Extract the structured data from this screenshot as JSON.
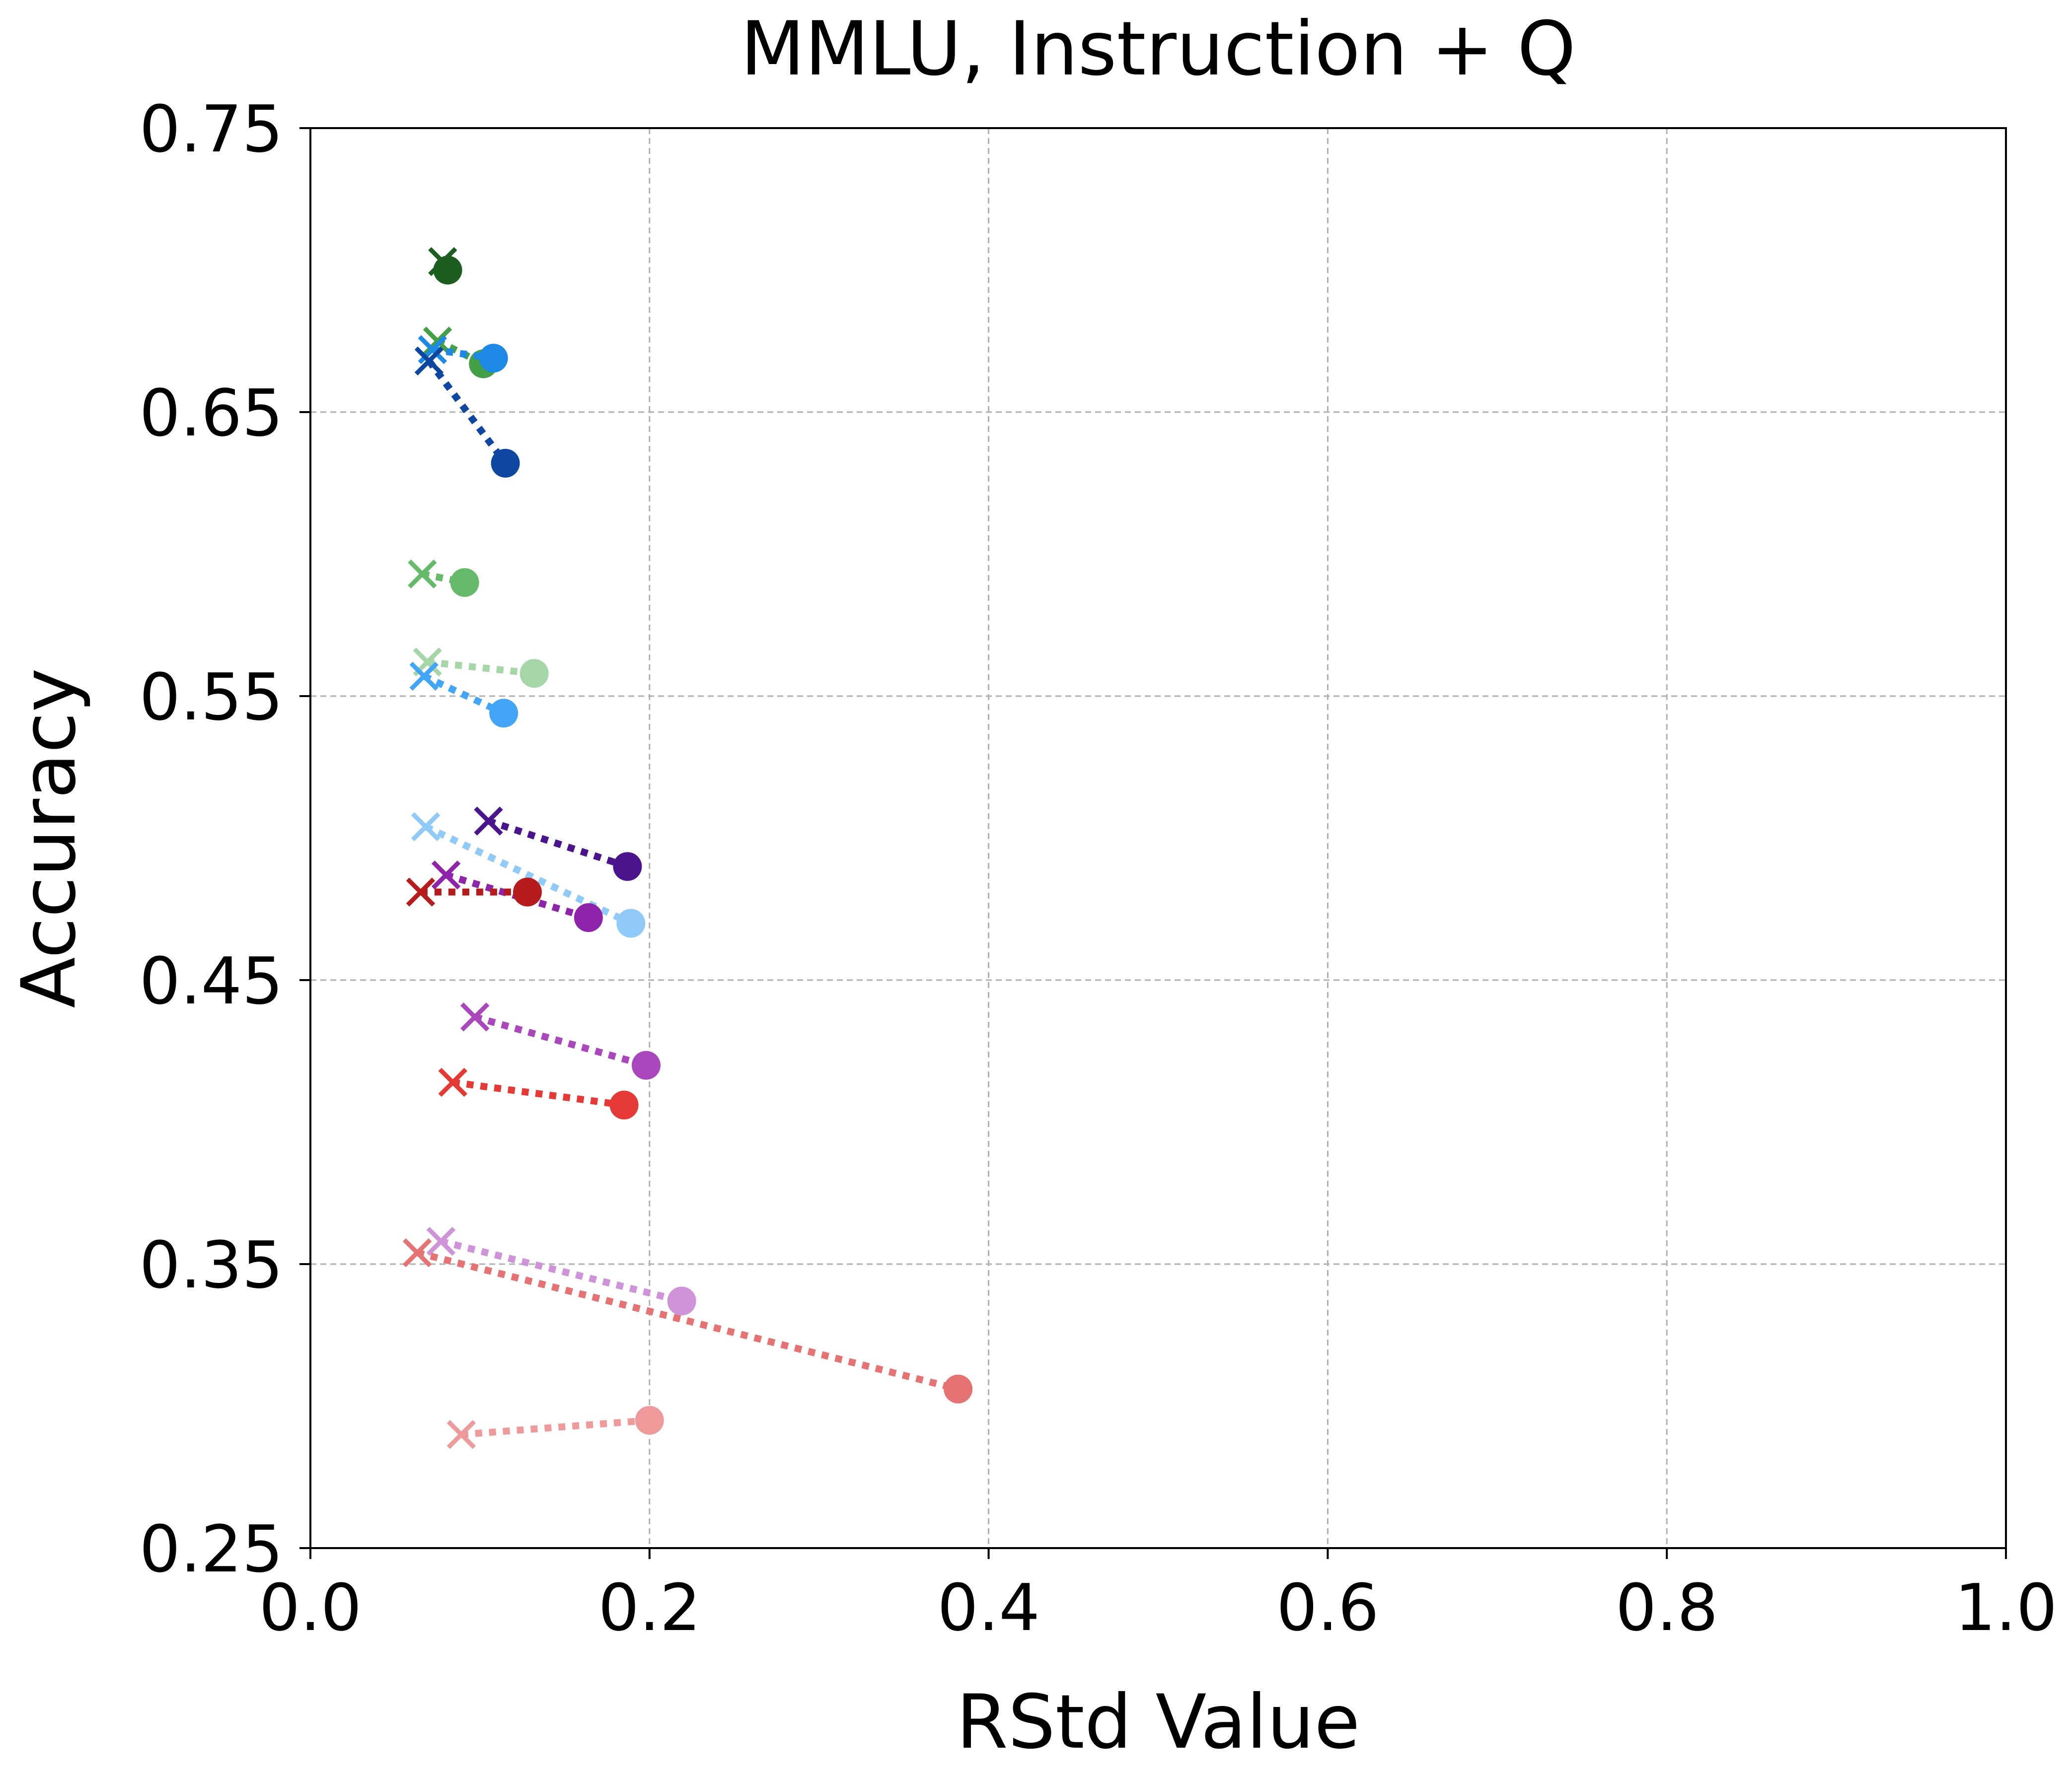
{
  "chart_data": {
    "type": "scatter",
    "title": "MMLU, Instruction + Q",
    "xlabel": "RStd Value",
    "ylabel": "Accuracy",
    "xlim": [
      0.0,
      1.0
    ],
    "ylim": [
      0.25,
      0.75
    ],
    "xticks": [
      0.0,
      0.2,
      0.4,
      0.6,
      0.8,
      1.0
    ],
    "xtick_labels": [
      "0.0",
      "0.2",
      "0.4",
      "0.6",
      "0.8",
      "1.0"
    ],
    "yticks": [
      0.25,
      0.35,
      0.45,
      0.55,
      0.65,
      0.75
    ],
    "ytick_labels": [
      "0.25",
      "0.35",
      "0.45",
      "0.55",
      "0.65",
      "0.75"
    ],
    "grid": true,
    "marker_legend": {
      "x": "cross",
      "o": "circle"
    },
    "series": [
      {
        "color": "#1b5e20",
        "x_marker": [
          0.078,
          0.703
        ],
        "o_marker": [
          0.081,
          0.7
        ]
      },
      {
        "color": "#43a047",
        "x_marker": [
          0.075,
          0.675
        ],
        "o_marker": [
          0.102,
          0.667
        ]
      },
      {
        "color": "#1e88e5",
        "x_marker": [
          0.072,
          0.672
        ],
        "o_marker": [
          0.108,
          0.669
        ]
      },
      {
        "color": "#0d47a1",
        "x_marker": [
          0.07,
          0.668
        ],
        "o_marker": [
          0.115,
          0.632
        ]
      },
      {
        "color": "#66bb6a",
        "x_marker": [
          0.066,
          0.593
        ],
        "o_marker": [
          0.091,
          0.59
        ]
      },
      {
        "color": "#a5d6a7",
        "x_marker": [
          0.069,
          0.562
        ],
        "o_marker": [
          0.132,
          0.558
        ]
      },
      {
        "color": "#42a5f5",
        "x_marker": [
          0.067,
          0.557
        ],
        "o_marker": [
          0.114,
          0.544
        ]
      },
      {
        "color": "#4a148c",
        "x_marker": [
          0.105,
          0.506
        ],
        "o_marker": [
          0.187,
          0.49
        ]
      },
      {
        "color": "#90caf9",
        "x_marker": [
          0.068,
          0.504
        ],
        "o_marker": [
          0.189,
          0.47
        ]
      },
      {
        "color": "#8e24aa",
        "x_marker": [
          0.08,
          0.487
        ],
        "o_marker": [
          0.164,
          0.472
        ]
      },
      {
        "color": "#b71c1c",
        "x_marker": [
          0.065,
          0.481
        ],
        "o_marker": [
          0.128,
          0.481
        ]
      },
      {
        "color": "#ab47bc",
        "x_marker": [
          0.097,
          0.437
        ],
        "o_marker": [
          0.198,
          0.42
        ]
      },
      {
        "color": "#e53935",
        "x_marker": [
          0.084,
          0.414
        ],
        "o_marker": [
          0.185,
          0.406
        ]
      },
      {
        "color": "#ce93d8",
        "x_marker": [
          0.077,
          0.358
        ],
        "o_marker": [
          0.219,
          0.337
        ]
      },
      {
        "color": "#e57373",
        "x_marker": [
          0.063,
          0.354
        ],
        "o_marker": [
          0.382,
          0.306
        ]
      },
      {
        "color": "#ef9a9a",
        "x_marker": [
          0.089,
          0.29
        ],
        "o_marker": [
          0.2,
          0.295
        ]
      }
    ]
  }
}
